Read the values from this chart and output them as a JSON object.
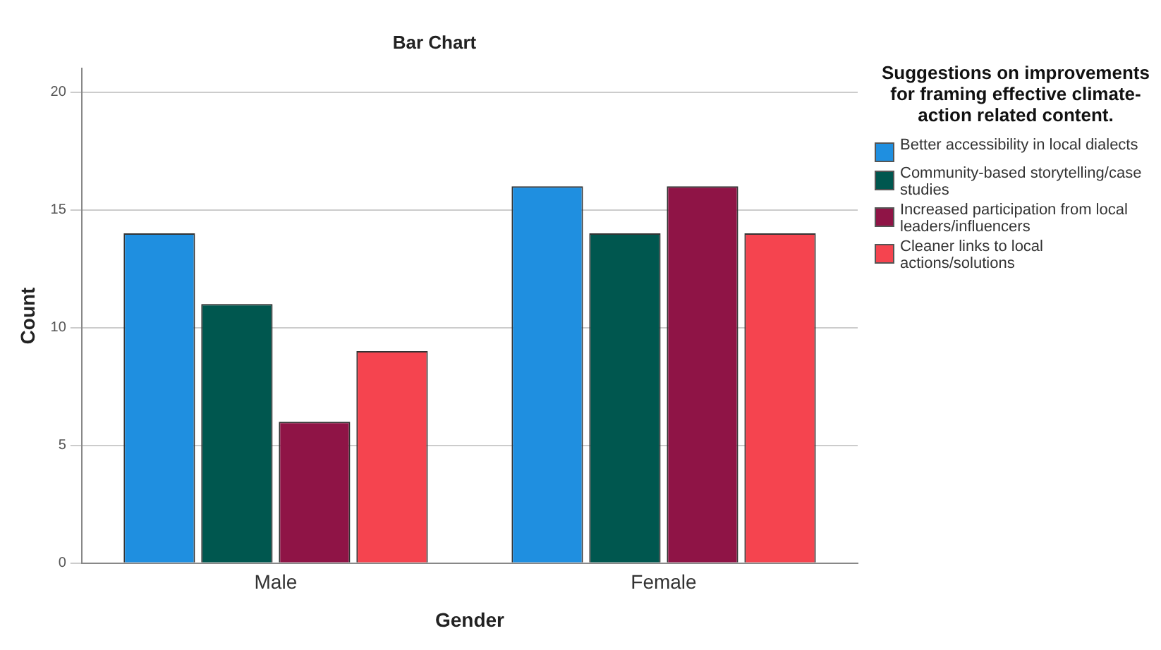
{
  "chart_data": {
    "type": "bar",
    "title": "Bar Chart",
    "xlabel": "Gender",
    "ylabel": "Count",
    "legend_title": "Suggestions on improvements for framing effective climate-action related content.",
    "categories": [
      "Male",
      "Female"
    ],
    "series": [
      {
        "name": "Better accessibility in local dialects",
        "color": "#1f8fe0",
        "values": [
          14,
          16
        ]
      },
      {
        "name": "Community-based storytelling/case studies",
        "color": "#00574f",
        "values": [
          11,
          14
        ]
      },
      {
        "name": "Increased participation from local leaders/influencers",
        "color": "#8f1446",
        "values": [
          6,
          16
        ]
      },
      {
        "name": "Cleaner links to local actions/solutions",
        "color": "#f5444f",
        "values": [
          9,
          14
        ]
      }
    ],
    "ylim": [
      0,
      21
    ],
    "yticks": [
      0,
      5,
      10,
      15,
      20
    ],
    "grid": "y",
    "legend": "right"
  }
}
